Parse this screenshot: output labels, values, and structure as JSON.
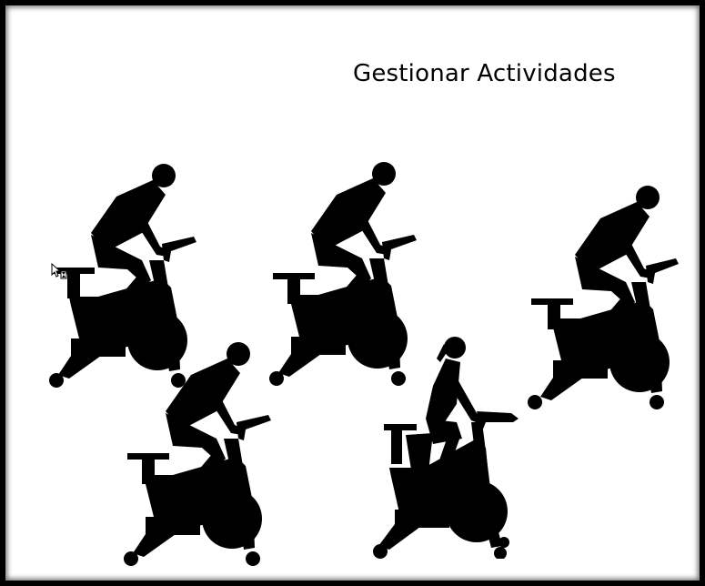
{
  "page": {
    "title": "Gestionar Actividades"
  },
  "colors": {
    "background": "#ffffff",
    "silhouette": "#000000",
    "frame": "#000000"
  },
  "icons": [
    "cyclist-icon",
    "cyclist-icon",
    "cyclist-icon",
    "cyclist-icon",
    "cyclist-female-icon"
  ],
  "cursor": "busy-cursor-icon"
}
